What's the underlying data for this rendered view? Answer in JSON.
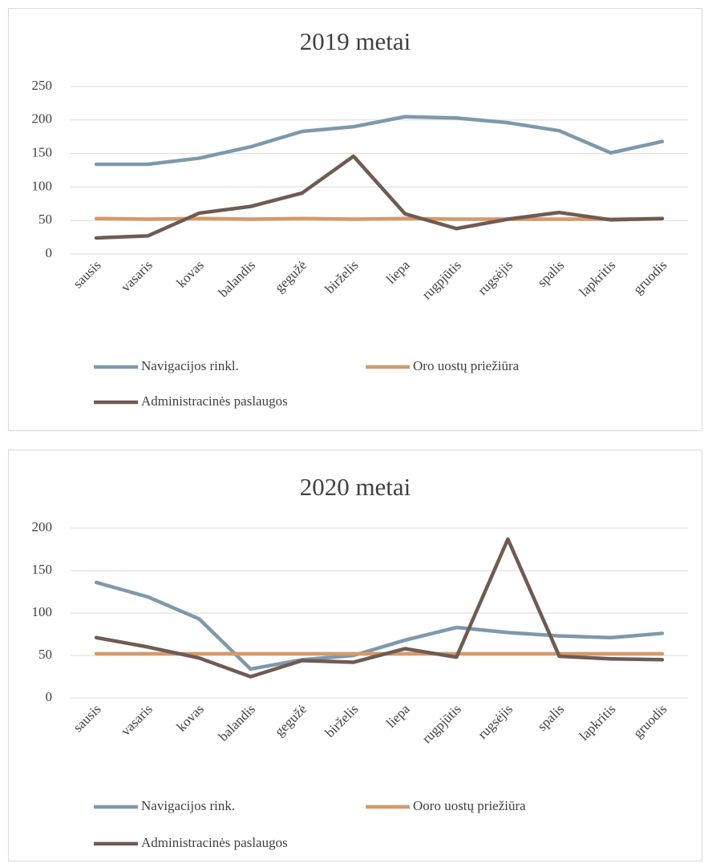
{
  "chart_data": [
    {
      "type": "line",
      "title": "2019 metai",
      "categories": [
        "sausis",
        "vasaris",
        "kovas",
        "balandis",
        "gegužė",
        "birželis",
        "liepa",
        "rugpjūtis",
        "rugsėjis",
        "spalis",
        "lapkritis",
        "gruodis"
      ],
      "series": [
        {
          "name": "Navigacijos rinkl.",
          "color": "#7f98ab",
          "values": [
            134,
            134,
            143,
            160,
            183,
            190,
            205,
            203,
            196,
            184,
            151,
            168
          ]
        },
        {
          "name": "Oro uostų priežiūra",
          "color": "#d49a6a",
          "values": [
            53,
            52,
            53,
            52,
            53,
            52,
            53,
            52,
            52,
            52,
            52,
            53
          ]
        },
        {
          "name": "Administracinės paslaugos",
          "color": "#6f5b52",
          "values": [
            24,
            27,
            61,
            71,
            91,
            146,
            60,
            38,
            52,
            62,
            51,
            53
          ]
        }
      ],
      "ylim": [
        0,
        250
      ],
      "yticks": [
        0,
        50,
        100,
        150,
        200,
        250
      ],
      "grid": true,
      "legend": "bottom"
    },
    {
      "type": "line",
      "title": "2020 metai",
      "categories": [
        "sausis",
        "vasaris",
        "kovas",
        "balandis",
        "gegužė",
        "birželis",
        "liepa",
        "rugpjūtis",
        "rugsėjis",
        "spalis",
        "lapkritis",
        "gruodis"
      ],
      "series": [
        {
          "name": "Navigacijos rink.",
          "color": "#7f98ab",
          "values": [
            136,
            119,
            93,
            34,
            45,
            50,
            68,
            83,
            77,
            73,
            71,
            76
          ]
        },
        {
          "name": "Ooro uostų priežiūra",
          "color": "#d49a6a",
          "values": [
            52,
            52,
            52,
            52,
            52,
            52,
            52,
            52,
            52,
            52,
            52,
            52
          ]
        },
        {
          "name": "Administracinės paslaugos",
          "color": "#6f5b52",
          "values": [
            71,
            60,
            47,
            25,
            44,
            42,
            58,
            48,
            187,
            49,
            46,
            45
          ]
        }
      ],
      "ylim": [
        0,
        200
      ],
      "yticks": [
        0,
        50,
        100,
        150,
        200
      ],
      "grid": true,
      "legend": "bottom"
    }
  ]
}
